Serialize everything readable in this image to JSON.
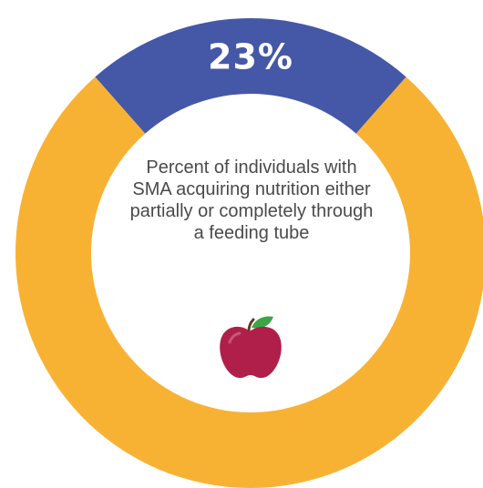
{
  "chart_data": {
    "type": "pie",
    "title": "",
    "slices": [
      {
        "label": "",
        "value": 23,
        "display": "23%",
        "color": "#4558a7"
      },
      {
        "label": "",
        "value": 77,
        "display": "",
        "color": "#f8b233"
      }
    ],
    "center_text": "Percent of individuals with SMA acquiring nutrition either partially or completely through a feeding tube",
    "legend": "none"
  },
  "icons": {
    "center_icon": "apple-icon",
    "apple_color": "#b01f4a",
    "leaf_color": "#3aa646"
  }
}
